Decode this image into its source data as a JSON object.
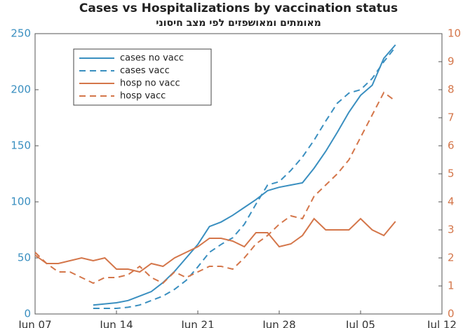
{
  "chart_data": {
    "type": "line",
    "title": "Cases vs Hospitalizations by vaccination status",
    "subtitle": "מאומתים ומאושפזים לפי מצב חיסוני",
    "x": [
      0,
      1,
      2,
      3,
      4,
      5,
      6,
      7,
      8,
      9,
      10,
      11,
      12,
      13,
      14,
      15,
      16,
      17,
      18,
      19,
      20,
      21,
      22,
      23,
      24,
      25,
      26,
      27,
      28,
      29,
      30,
      31
    ],
    "xlim": [
      0,
      35
    ],
    "xticks": [
      {
        "value": 0,
        "label": "Jun 07"
      },
      {
        "value": 7,
        "label": "Jun 14"
      },
      {
        "value": 14,
        "label": "Jun 21"
      },
      {
        "value": 21,
        "label": "Jun 28"
      },
      {
        "value": 28,
        "label": "Jul 05"
      },
      {
        "value": 35,
        "label": "Jul 12"
      }
    ],
    "ylim": [
      0,
      250
    ],
    "yticks": [
      0,
      50,
      100,
      150,
      200,
      250
    ],
    "ycolor": "#3a8fc0",
    "y2lim": [
      0,
      10
    ],
    "y2ticks": [
      0,
      1,
      2,
      3,
      4,
      5,
      6,
      7,
      8,
      9,
      10
    ],
    "y2color": "#d4764a",
    "legend": "upper left",
    "series": [
      {
        "name": "cases no vacc",
        "color": "#3a8fc0",
        "dashed": false,
        "values": [
          null,
          null,
          null,
          null,
          null,
          8,
          9,
          10,
          12,
          16,
          20,
          28,
          38,
          50,
          62,
          78,
          82,
          88,
          95,
          102,
          110,
          113,
          115,
          117,
          130,
          145,
          162,
          180,
          195,
          204,
          228,
          240
        ]
      },
      {
        "name": "cases vacc",
        "color": "#3a8fc0",
        "dashed": true,
        "values": [
          null,
          null,
          null,
          null,
          null,
          5,
          5,
          5,
          6,
          8,
          12,
          16,
          22,
          30,
          42,
          55,
          62,
          68,
          80,
          98,
          115,
          118,
          128,
          140,
          155,
          172,
          188,
          197,
          200,
          210,
          225,
          238
        ]
      },
      {
        "name": "hosp no vacc",
        "color": "#d4764a",
        "dashed": false,
        "axis": "y2",
        "values": [
          2.1,
          1.8,
          1.8,
          1.9,
          2.0,
          1.9,
          2.0,
          1.6,
          1.6,
          1.5,
          1.8,
          1.7,
          2.0,
          2.2,
          2.4,
          2.7,
          2.7,
          2.6,
          2.4,
          2.9,
          2.9,
          2.4,
          2.5,
          2.8,
          3.4,
          3.0,
          3.0,
          3.0,
          3.4,
          3.0,
          2.8,
          3.3
        ]
      },
      {
        "name": "hosp vacc",
        "color": "#d4764a",
        "dashed": true,
        "axis": "y2",
        "values": [
          2.2,
          1.8,
          1.5,
          1.5,
          1.3,
          1.1,
          1.3,
          1.3,
          1.4,
          1.7,
          1.3,
          1.1,
          1.5,
          1.3,
          1.5,
          1.7,
          1.7,
          1.6,
          2.0,
          2.5,
          2.8,
          3.2,
          3.5,
          3.4,
          4.2,
          4.6,
          5.0,
          5.5,
          6.3,
          7.1,
          7.9,
          7.6
        ]
      }
    ]
  }
}
